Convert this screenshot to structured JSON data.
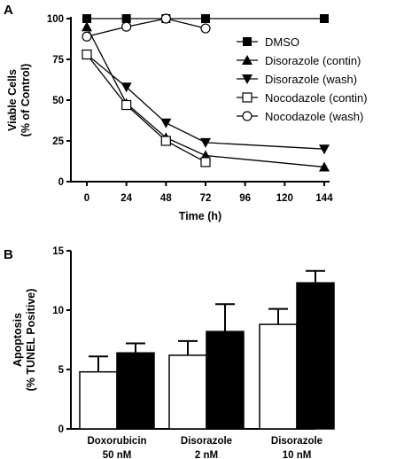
{
  "chart_data": [
    {
      "panel": "A",
      "type": "line",
      "xlabel": "Time (h)",
      "ylabel": [
        "Viable Cells",
        "(% of Control)"
      ],
      "x_ticks": [
        "0",
        "24",
        "48",
        "72",
        "96",
        "120",
        "144"
      ],
      "y_ticks": [
        "0",
        "25",
        "50",
        "75",
        "100"
      ],
      "xlim": [
        0,
        144
      ],
      "ylim": [
        0,
        100
      ],
      "legend_position": "right",
      "series": [
        {
          "name": "DMSO",
          "marker": "square-filled",
          "points": [
            [
              0,
              100
            ],
            [
              24,
              100
            ],
            [
              48,
              100
            ],
            [
              72,
              100
            ],
            [
              144,
              100
            ]
          ]
        },
        {
          "name": "Disorazole (contin)",
          "marker": "triangle-up",
          "points": [
            [
              0,
              95
            ],
            [
              24,
              48
            ],
            [
              48,
              27
            ],
            [
              72,
              16
            ],
            [
              144,
              9
            ]
          ]
        },
        {
          "name": "Disorazole (wash)",
          "marker": "triangle-down",
          "points": [
            [
              0,
              78
            ],
            [
              24,
              58
            ],
            [
              48,
              36
            ],
            [
              72,
              24
            ],
            [
              144,
              20
            ]
          ]
        },
        {
          "name": "Nocodazole (contin)",
          "marker": "square-open",
          "points": [
            [
              0,
              78
            ],
            [
              24,
              47
            ],
            [
              48,
              25
            ],
            [
              72,
              12
            ]
          ]
        },
        {
          "name": "Nocodazole (wash)",
          "marker": "circle-open",
          "points": [
            [
              0,
              89
            ],
            [
              24,
              95
            ],
            [
              48,
              100
            ],
            [
              72,
              94
            ]
          ]
        }
      ]
    },
    {
      "panel": "B",
      "type": "bar",
      "ylabel": [
        "Apoptosis",
        "(% TUNEL Positive)"
      ],
      "y_ticks": [
        "0",
        "5",
        "10",
        "15"
      ],
      "ylim": [
        0,
        15
      ],
      "categories": [
        {
          "name": "Doxorubicin",
          "dose": "50 nM"
        },
        {
          "name": "Disorazole",
          "dose": "2 nM"
        },
        {
          "name": "Disorazole",
          "dose": "10 nM"
        }
      ],
      "series": [
        {
          "fill": "#ffffff",
          "values": [
            4.8,
            6.2,
            8.8
          ],
          "errors": [
            1.3,
            1.2,
            1.3
          ]
        },
        {
          "fill": "#000000",
          "values": [
            6.4,
            8.2,
            12.3
          ],
          "errors": [
            0.8,
            2.3,
            1.0
          ]
        }
      ]
    }
  ]
}
